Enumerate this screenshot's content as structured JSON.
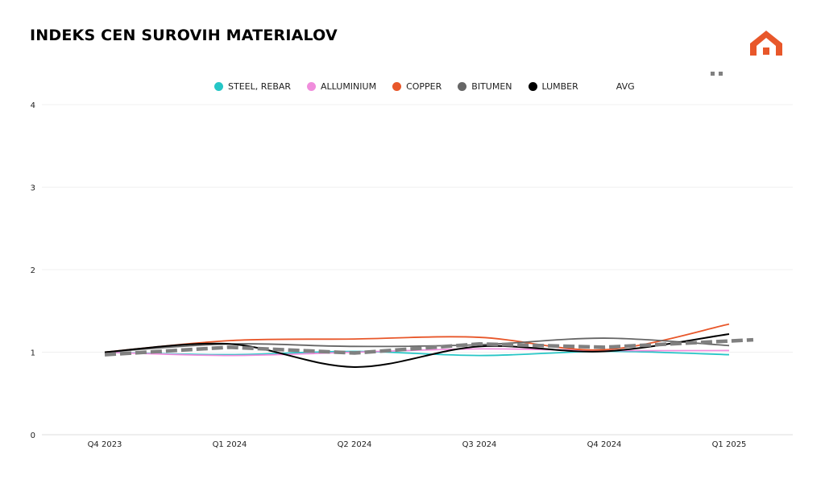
{
  "chart_data": {
    "type": "line",
    "title": "INDEKS CEN SUROVIH MATERIALOV",
    "categories": [
      "Q4 2023",
      "Q1 2024",
      "Q2 2024",
      "Q3 2024",
      "Q4 2024",
      "Q1 2025"
    ],
    "ylim": [
      0,
      4
    ],
    "yticks": [
      "0",
      "1",
      "2",
      "3",
      "4"
    ],
    "grid": true,
    "legend_position": "top",
    "series": [
      {
        "name": "STEEL, REBAR",
        "color": "#26c6c6",
        "values": [
          1.0,
          0.97,
          1.01,
          0.96,
          1.01,
          0.97
        ]
      },
      {
        "name": "ALLUMINIUM",
        "color": "#f08ddc",
        "values": [
          1.0,
          0.96,
          1.0,
          1.04,
          1.02,
          1.02
        ]
      },
      {
        "name": "COPPER",
        "color": "#e8572a",
        "values": [
          1.0,
          1.14,
          1.16,
          1.18,
          1.03,
          1.34
        ]
      },
      {
        "name": "BITUMEN",
        "color": "#666666",
        "values": [
          1.0,
          1.1,
          1.07,
          1.09,
          1.17,
          1.08
        ]
      },
      {
        "name": "LUMBER",
        "color": "#000000",
        "values": [
          1.0,
          1.1,
          0.82,
          1.07,
          1.01,
          1.22
        ]
      },
      {
        "name": "AVG",
        "color": "#808080",
        "dashed": true,
        "values": [
          0.97,
          1.06,
          0.99,
          1.1,
          1.06,
          1.15
        ]
      }
    ]
  },
  "logo": {
    "icon": "house-icon",
    "color": "#e8572a"
  }
}
